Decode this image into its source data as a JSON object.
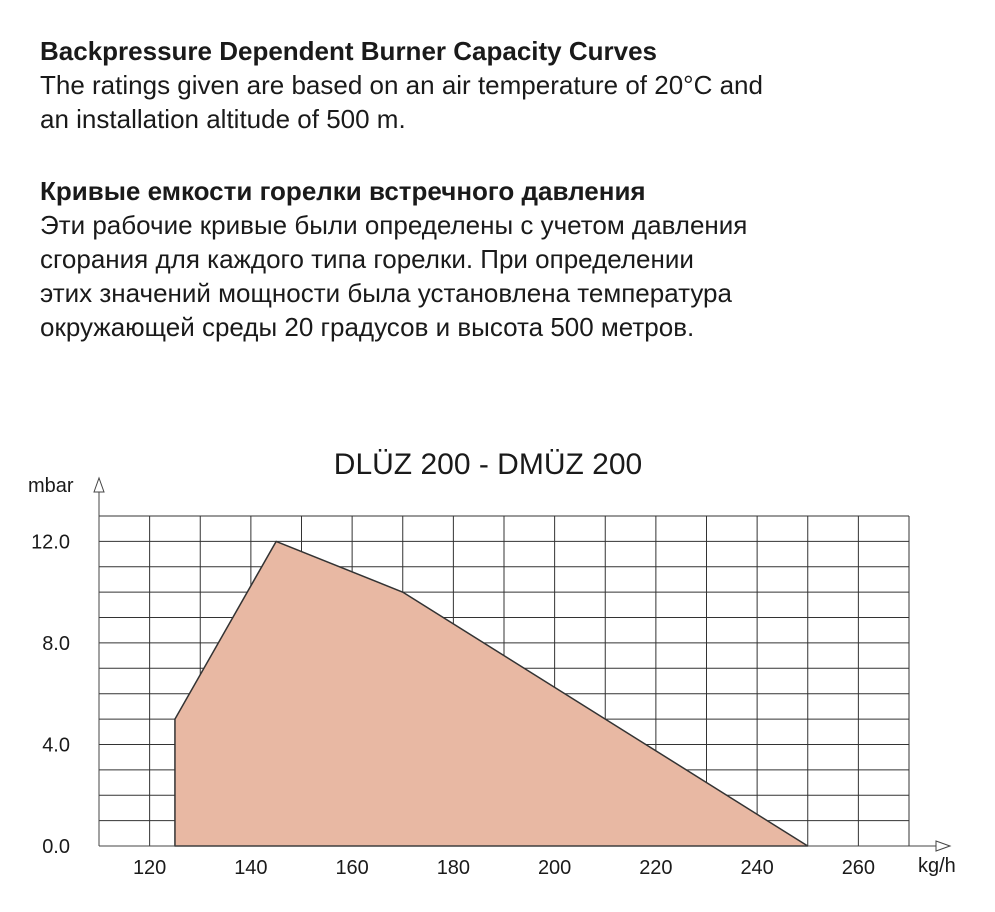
{
  "english": {
    "heading": "Backpressure Dependent Burner Capacity Curves",
    "lines": [
      "The ratings given are based on an air temperature of 20°C and",
      "an installation altitude of 500 m."
    ]
  },
  "russian": {
    "heading": "Кривые емкости горелки встречного давления",
    "lines": [
      "Эти рабочие кривые были определены с учетом давления",
      "сгорания для каждого типа горелки. При определении",
      "этих значений мощности была установлена температура",
      "окружающей среды 20 градусов и высота 500 метров."
    ]
  },
  "chart_data": {
    "type": "area",
    "title": "DLÜZ 200 - DMÜZ 200",
    "xlabel": "kg/h",
    "ylabel": "mbar",
    "xlim": [
      110,
      270
    ],
    "ylim": [
      0,
      13
    ],
    "x_ticks": [
      "120",
      "140",
      "160",
      "180",
      "200",
      "220",
      "240",
      "260"
    ],
    "y_ticks": [
      "0.0",
      "4.0",
      "8.0",
      "12.0"
    ],
    "grid": true,
    "fill_color": "#e8b8a3",
    "line_color": "#333333",
    "series": [
      {
        "x": [
          125,
          125,
          145,
          170,
          250
        ],
        "y": [
          0,
          5,
          12,
          10,
          0
        ]
      }
    ]
  }
}
